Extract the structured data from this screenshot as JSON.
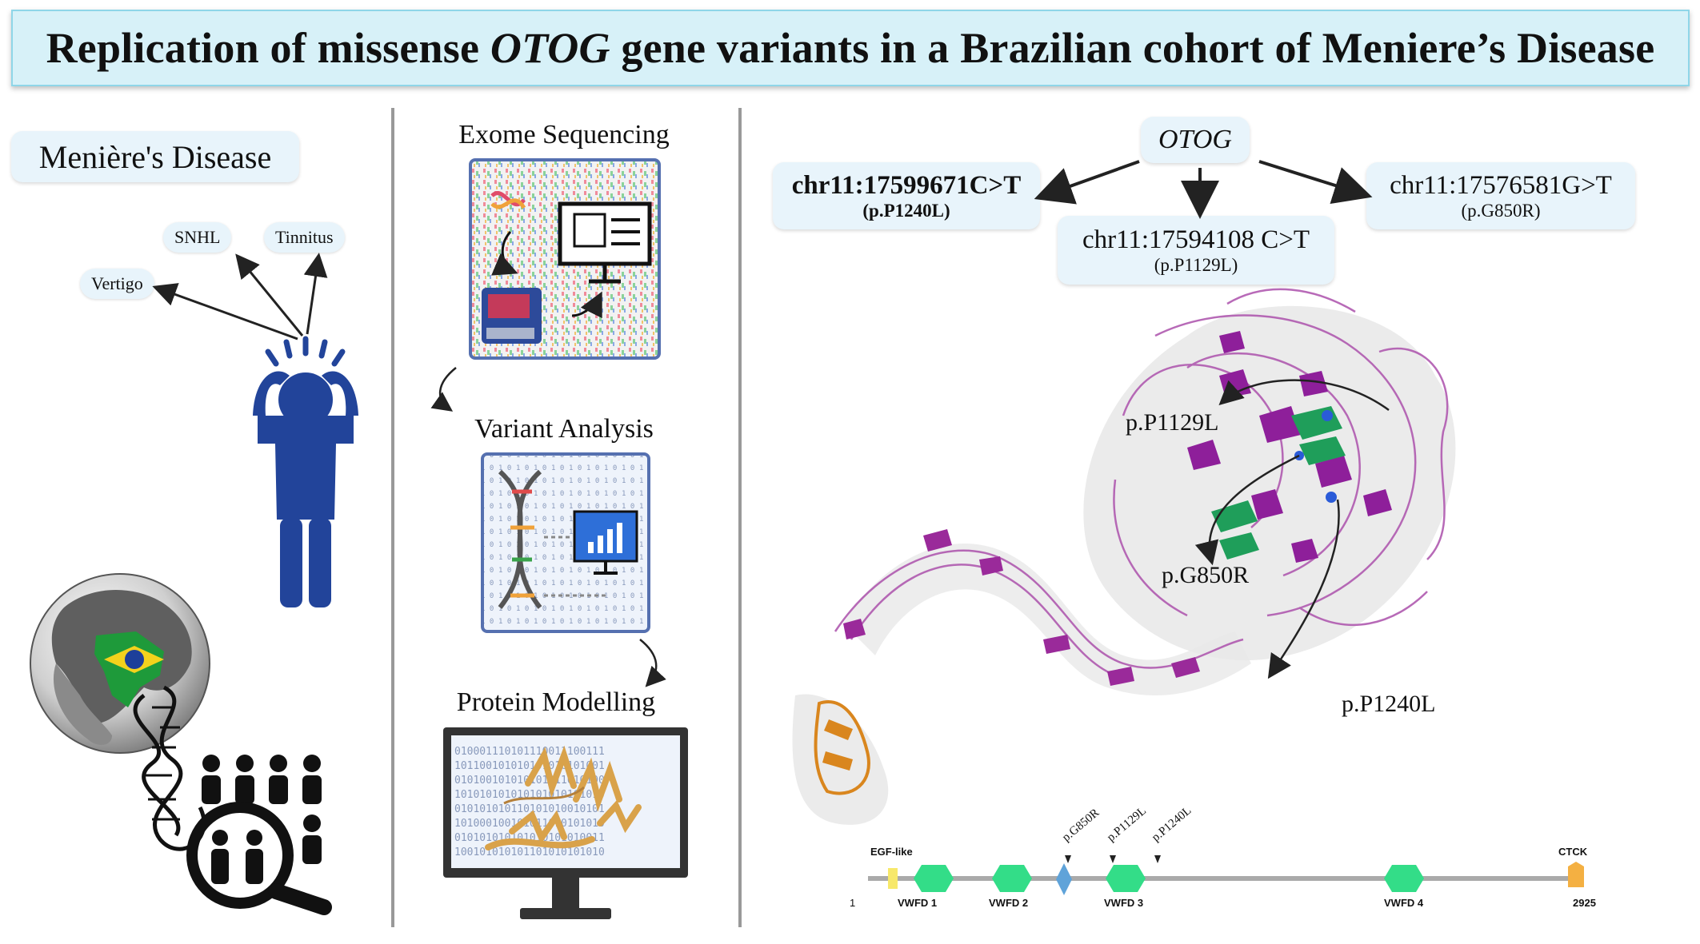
{
  "title": {
    "prefix": "Replication of missense ",
    "gene": "OTOG",
    "suffix": " gene variants in a Brazilian cohort of Meniere’s Disease"
  },
  "left_panel": {
    "disease_label": "Menière's Disease",
    "symptoms": [
      "SNHL",
      "Tinnitus",
      "Vertigo"
    ]
  },
  "middle_panel": {
    "steps": [
      "Exome Sequencing",
      "Variant Analysis",
      "Protein Modelling"
    ],
    "binary_text": "0100011101011100111001110010010101010111001010101010101011010100101001"
  },
  "right_panel": {
    "gene_label": "OTOG",
    "variants": [
      {
        "coord": "chr11:17599671C>T",
        "protein": "(p.P1240L)"
      },
      {
        "coord": "chr11:17594108 C>T",
        "protein": "(p.P1129L)"
      },
      {
        "coord": "chr11:17576581G>T",
        "protein": "(p.G850R)"
      }
    ],
    "structure_labels": [
      "p.P1129L",
      "p.G850R",
      "p.P1240L"
    ],
    "domain_map": {
      "start": "1",
      "end": "2925",
      "domains": [
        "EGF-like",
        "VWFD 1",
        "VWFD 2",
        "VWFD 3",
        "VWFD 4",
        "CTCK"
      ],
      "sites": [
        "p.G850R",
        "p.P1129L",
        "p.P1240L"
      ]
    }
  },
  "colors": {
    "title_bg": "#d7f1f8",
    "pill_bg": "#e8f4fb",
    "figure_blue": "#22449a",
    "protein_magenta": "#9a2a9a",
    "protein_green": "#1f9e5a",
    "protein_orange": "#d9861e",
    "domain_green": "#33dd88"
  }
}
